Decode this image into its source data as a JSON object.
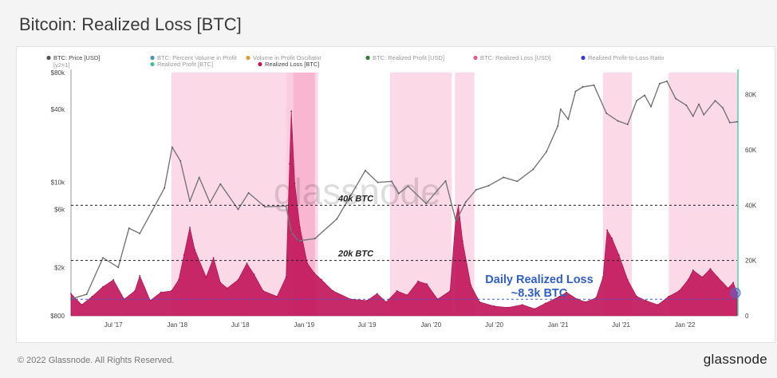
{
  "title": "Bitcoin: Realized Loss [BTC]",
  "footer": {
    "copyright": "© 2022 Glassnode. All Rights Reserved.",
    "logo": "glassnode"
  },
  "watermark": "glassnode",
  "legend": [
    {
      "label": "BTC: Price [USD]",
      "color": "#555555",
      "active": true
    },
    {
      "label": "BTC: Percent Volume in Profit",
      "color": "#4e8fb5",
      "active": false
    },
    {
      "label": "Volume in Profit Oscillator",
      "color": "#e59a3a",
      "active": false
    },
    {
      "label": "BTC: Realized Profit [USD]",
      "color": "#2e7d32",
      "active": false
    },
    {
      "label": "BTC: Realized Loss [USD]",
      "color": "#e05b8f",
      "active": false
    },
    {
      "label": "Realized Profit-to-Loss Ratio",
      "color": "#3a3ad0",
      "active": false
    },
    {
      "label": "Realized Profit [BTC]",
      "color": "#43c09b",
      "active": false
    },
    {
      "label": "Realized Loss [BTC]",
      "color": "#c2185b",
      "active": true
    }
  ],
  "chart_data": {
    "type": "area",
    "title": "Bitcoin: Realized Loss [BTC]",
    "x_ticks": [
      "Jul '17",
      "Jan '18",
      "Jul '18",
      "Jan '19",
      "Jul '19",
      "Jan '20",
      "Jul '20",
      "Jan '21",
      "Jul '21",
      "Jan '22"
    ],
    "x_range": [
      "2017-03-01",
      "2022-05-31"
    ],
    "left_axis": {
      "scale": "log",
      "unit": "USD",
      "label_note": "[y2=1]",
      "ylim": [
        800,
        80000
      ],
      "ticks": [
        "$800",
        "$2k",
        "$6k",
        "$10k",
        "$40k",
        "$80k"
      ]
    },
    "right_axis": {
      "scale": "linear",
      "unit": "BTC",
      "ylim": [
        0,
        88000
      ],
      "ticks": [
        "0",
        "20K",
        "40K",
        "60K",
        "80K"
      ]
    },
    "thresholds": [
      {
        "label": "40k BTC",
        "value": 40000
      },
      {
        "label": "20k BTC",
        "value": 20000
      }
    ],
    "baseline": {
      "value": 6000
    },
    "annotation": {
      "line1": "Daily Realized Loss",
      "line2": "~8.3k BTC",
      "value": 8300
    },
    "highlight_periods": [
      {
        "start": "2017-12-15",
        "end": "2018-11-10",
        "strength": "light"
      },
      {
        "start": "2018-11-10",
        "end": "2019-02-01",
        "strength": "dark"
      },
      {
        "start": "2018-12-01",
        "end": "2019-02-10",
        "strength": "light"
      },
      {
        "start": "2019-09-05",
        "end": "2020-03-01",
        "strength": "light"
      },
      {
        "start": "2020-03-10",
        "end": "2020-05-05",
        "strength": "light"
      },
      {
        "start": "2021-05-10",
        "end": "2021-08-01",
        "strength": "light"
      },
      {
        "start": "2021-11-15",
        "end": "2022-05-31",
        "strength": "light"
      }
    ],
    "series": [
      {
        "name": "BTC: Price [USD]",
        "axis": "left",
        "color": "#777777",
        "points": [
          [
            "2017-03-01",
            1100
          ],
          [
            "2017-04-15",
            1200
          ],
          [
            "2017-06-01",
            2400
          ],
          [
            "2017-07-15",
            2000
          ],
          [
            "2017-08-15",
            4200
          ],
          [
            "2017-09-15",
            3800
          ],
          [
            "2017-10-20",
            5800
          ],
          [
            "2017-11-25",
            9000
          ],
          [
            "2017-12-17",
            19500
          ],
          [
            "2018-01-10",
            15000
          ],
          [
            "2018-02-06",
            7000
          ],
          [
            "2018-03-05",
            11000
          ],
          [
            "2018-04-05",
            6800
          ],
          [
            "2018-05-05",
            9700
          ],
          [
            "2018-06-25",
            6000
          ],
          [
            "2018-07-25",
            8200
          ],
          [
            "2018-09-10",
            6300
          ],
          [
            "2018-11-10",
            6400
          ],
          [
            "2018-11-25",
            3900
          ],
          [
            "2018-12-15",
            3300
          ],
          [
            "2019-02-01",
            3450
          ],
          [
            "2019-04-05",
            5000
          ],
          [
            "2019-05-15",
            7800
          ],
          [
            "2019-06-26",
            12500
          ],
          [
            "2019-08-01",
            10000
          ],
          [
            "2019-09-10",
            10200
          ],
          [
            "2019-09-30",
            8100
          ],
          [
            "2019-10-27",
            9300
          ],
          [
            "2019-12-18",
            6700
          ],
          [
            "2020-02-12",
            10300
          ],
          [
            "2020-03-13",
            4800
          ],
          [
            "2020-04-10",
            6900
          ],
          [
            "2020-05-10",
            8700
          ],
          [
            "2020-06-15",
            9400
          ],
          [
            "2020-07-28",
            11000
          ],
          [
            "2020-09-05",
            10200
          ],
          [
            "2020-10-21",
            12800
          ],
          [
            "2020-11-28",
            17800
          ],
          [
            "2020-12-31",
            29000
          ],
          [
            "2021-01-08",
            40000
          ],
          [
            "2021-01-30",
            33000
          ],
          [
            "2021-02-20",
            56000
          ],
          [
            "2021-03-13",
            61000
          ],
          [
            "2021-04-14",
            63000
          ],
          [
            "2021-05-20",
            37000
          ],
          [
            "2021-06-22",
            32000
          ],
          [
            "2021-07-20",
            30000
          ],
          [
            "2021-08-15",
            47000
          ],
          [
            "2021-09-07",
            52000
          ],
          [
            "2021-09-25",
            42000
          ],
          [
            "2021-10-20",
            65000
          ],
          [
            "2021-11-10",
            68000
          ],
          [
            "2021-12-05",
            49000
          ],
          [
            "2022-01-05",
            43000
          ],
          [
            "2022-01-24",
            35000
          ],
          [
            "2022-02-10",
            44000
          ],
          [
            "2022-02-24",
            36000
          ],
          [
            "2022-03-29",
            47000
          ],
          [
            "2022-04-20",
            41000
          ],
          [
            "2022-05-10",
            31000
          ],
          [
            "2022-05-31",
            31500
          ]
        ]
      },
      {
        "name": "Realized Loss [BTC]",
        "axis": "right",
        "color": "#c2185b",
        "points": [
          [
            "2017-03-01",
            8000
          ],
          [
            "2017-04-01",
            4000
          ],
          [
            "2017-05-01",
            7000
          ],
          [
            "2017-06-01",
            10500
          ],
          [
            "2017-07-01",
            13000
          ],
          [
            "2017-08-01",
            6000
          ],
          [
            "2017-09-01",
            9000
          ],
          [
            "2017-09-15",
            14500
          ],
          [
            "2017-10-15",
            5500
          ],
          [
            "2017-11-15",
            8500
          ],
          [
            "2017-12-15",
            9000
          ],
          [
            "2018-01-05",
            13000
          ],
          [
            "2018-01-20",
            22000
          ],
          [
            "2018-02-06",
            32000
          ],
          [
            "2018-02-20",
            24000
          ],
          [
            "2018-03-25",
            14000
          ],
          [
            "2018-04-15",
            21000
          ],
          [
            "2018-05-05",
            12000
          ],
          [
            "2018-05-25",
            10000
          ],
          [
            "2018-06-25",
            13000
          ],
          [
            "2018-07-20",
            19000
          ],
          [
            "2018-08-10",
            15000
          ],
          [
            "2018-09-05",
            9000
          ],
          [
            "2018-10-15",
            7000
          ],
          [
            "2018-11-10",
            14000
          ],
          [
            "2018-11-20",
            55000
          ],
          [
            "2018-11-25",
            74000
          ],
          [
            "2018-12-05",
            48000
          ],
          [
            "2018-12-20",
            32000
          ],
          [
            "2019-01-10",
            19000
          ],
          [
            "2019-01-30",
            15500
          ],
          [
            "2019-02-20",
            13000
          ],
          [
            "2019-03-25",
            9000
          ],
          [
            "2019-05-15",
            6000
          ],
          [
            "2019-07-01",
            5500
          ],
          [
            "2019-07-30",
            8000
          ],
          [
            "2019-08-25",
            5000
          ],
          [
            "2019-09-25",
            9000
          ],
          [
            "2019-10-25",
            7500
          ],
          [
            "2019-11-25",
            12500
          ],
          [
            "2019-12-20",
            11500
          ],
          [
            "2020-01-20",
            6000
          ],
          [
            "2020-02-25",
            9000
          ],
          [
            "2020-03-12",
            35000
          ],
          [
            "2020-03-20",
            40000
          ],
          [
            "2020-04-01",
            27000
          ],
          [
            "2020-04-25",
            11000
          ],
          [
            "2020-05-20",
            5000
          ],
          [
            "2020-07-01",
            3500
          ],
          [
            "2020-08-10",
            3000
          ],
          [
            "2020-09-20",
            4000
          ],
          [
            "2020-10-25",
            2500
          ],
          [
            "2020-11-25",
            4500
          ],
          [
            "2021-01-05",
            7000
          ],
          [
            "2021-01-25",
            8500
          ],
          [
            "2021-02-25",
            6000
          ],
          [
            "2021-03-20",
            5000
          ],
          [
            "2021-04-20",
            6500
          ],
          [
            "2021-05-10",
            14000
          ],
          [
            "2021-05-22",
            31000
          ],
          [
            "2021-06-05",
            28000
          ],
          [
            "2021-06-25",
            22000
          ],
          [
            "2021-07-20",
            13000
          ],
          [
            "2021-08-15",
            7000
          ],
          [
            "2021-09-10",
            5500
          ],
          [
            "2021-10-15",
            4000
          ],
          [
            "2021-11-15",
            7000
          ],
          [
            "2021-12-15",
            9000
          ],
          [
            "2022-01-10",
            13000
          ],
          [
            "2022-01-24",
            16500
          ],
          [
            "2022-02-20",
            14000
          ],
          [
            "2022-03-15",
            17000
          ],
          [
            "2022-04-05",
            14000
          ],
          [
            "2022-05-05",
            10000
          ],
          [
            "2022-05-20",
            12000
          ],
          [
            "2022-05-31",
            8300
          ]
        ]
      }
    ]
  }
}
